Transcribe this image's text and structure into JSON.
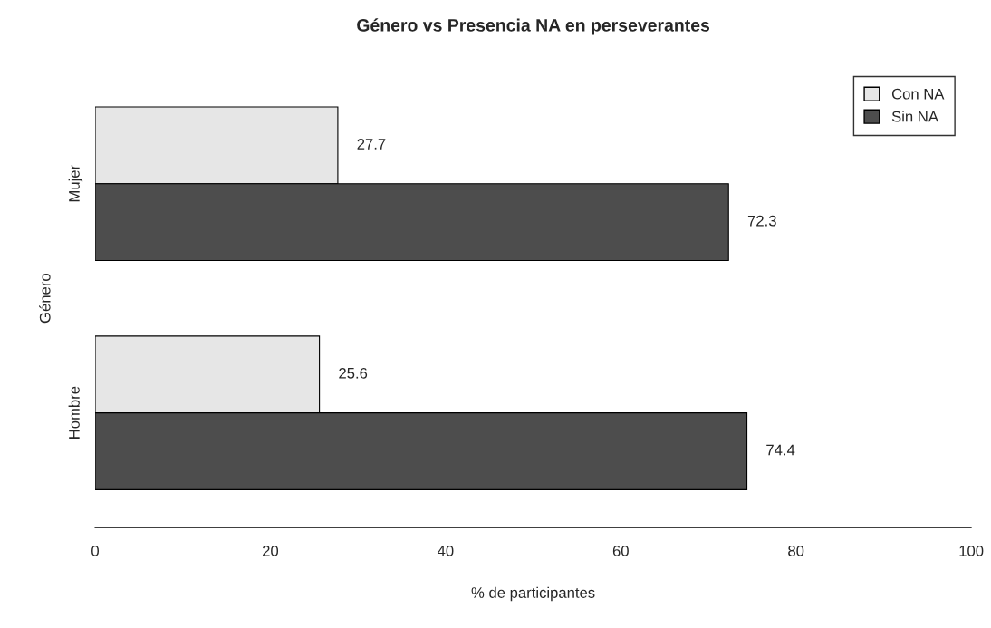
{
  "chart_data": {
    "type": "bar",
    "orientation": "horizontal",
    "title": "Género vs Presencia NA en perseverantes",
    "xlabel": "% de participantes",
    "ylabel": "Género",
    "categories": [
      "Mujer",
      "Hombre"
    ],
    "series": [
      {
        "name": "Con NA",
        "color": "#e6e6e6",
        "values": [
          27.7,
          25.6
        ]
      },
      {
        "name": "Sin NA",
        "color": "#4d4d4d",
        "values": [
          72.3,
          74.4
        ]
      }
    ],
    "xlim": [
      0,
      100
    ],
    "xticks": [
      0,
      20,
      40,
      60,
      80,
      100
    ],
    "data_labels": true,
    "legend": "top right"
  }
}
